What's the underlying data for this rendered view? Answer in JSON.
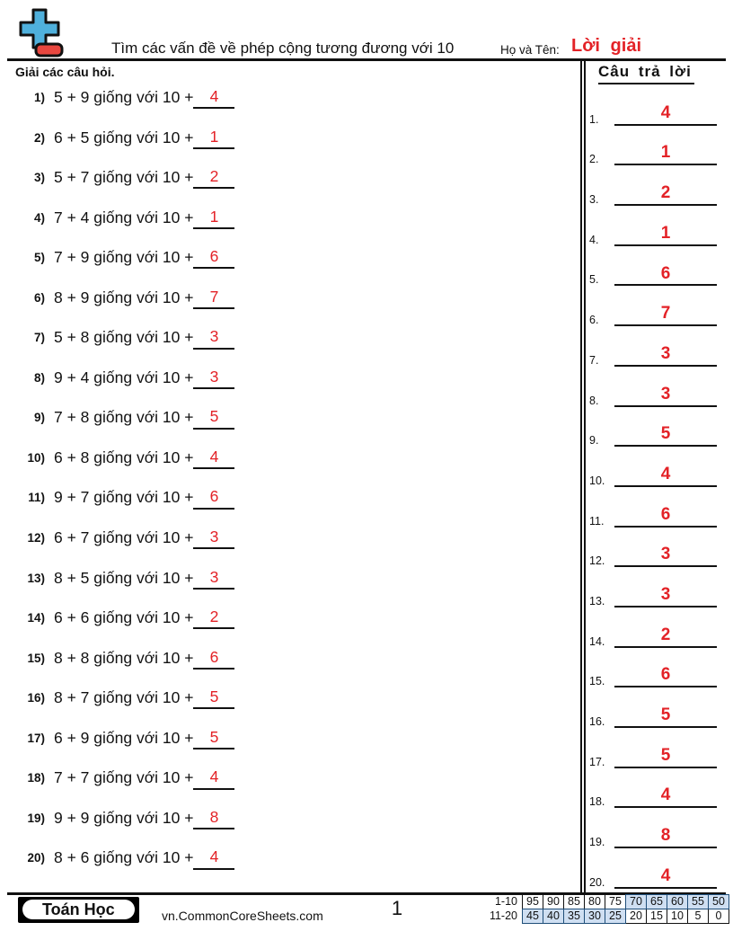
{
  "header": {
    "title": "Tìm các vấn đề về phép cộng tương đương với 10",
    "name_label": "Họ và Tên:",
    "name_value": "Lời giải",
    "instructions": "Giải các câu hỏi."
  },
  "colors": {
    "answer_red": "#e32227",
    "icon_blue": "#4fb0dc",
    "icon_red": "#e8473f",
    "score_highlight": "#cfdff2",
    "score_highlight_border": "#1f4e79"
  },
  "questions": [
    {
      "num": "1)",
      "text": "5 + 9 giống với 10 +",
      "answer": "4"
    },
    {
      "num": "2)",
      "text": "6 + 5 giống với 10 +",
      "answer": "1"
    },
    {
      "num": "3)",
      "text": "5 + 7 giống với 10 +",
      "answer": "2"
    },
    {
      "num": "4)",
      "text": "7 + 4 giống với 10 +",
      "answer": "1"
    },
    {
      "num": "5)",
      "text": "7 + 9 giống với 10 +",
      "answer": "6"
    },
    {
      "num": "6)",
      "text": "8 + 9 giống với 10 +",
      "answer": "7"
    },
    {
      "num": "7)",
      "text": "5 + 8 giống với 10 +",
      "answer": "3"
    },
    {
      "num": "8)",
      "text": "9 + 4 giống với 10 +",
      "answer": "3"
    },
    {
      "num": "9)",
      "text": "7 + 8 giống với 10 +",
      "answer": "5"
    },
    {
      "num": "10)",
      "text": "6 + 8 giống với 10 +",
      "answer": "4"
    },
    {
      "num": "11)",
      "text": "9 + 7 giống với 10 +",
      "answer": "6"
    },
    {
      "num": "12)",
      "text": "6 + 7 giống với 10 +",
      "answer": "3"
    },
    {
      "num": "13)",
      "text": "8 + 5 giống với 10 +",
      "answer": "3"
    },
    {
      "num": "14)",
      "text": "6 + 6 giống với 10 +",
      "answer": "2"
    },
    {
      "num": "15)",
      "text": "8 + 8 giống với 10 +",
      "answer": "6"
    },
    {
      "num": "16)",
      "text": "8 + 7 giống với 10 +",
      "answer": "5"
    },
    {
      "num": "17)",
      "text": "6 + 9 giống với 10 +",
      "answer": "5"
    },
    {
      "num": "18)",
      "text": "7 + 7 giống với 10 +",
      "answer": "4"
    },
    {
      "num": "19)",
      "text": "9 + 9 giống với 10 +",
      "answer": "8"
    },
    {
      "num": "20)",
      "text": "8 + 6 giống với 10 +",
      "answer": "4"
    }
  ],
  "answer_panel": {
    "title": "Câu trả lời",
    "items": [
      {
        "num": "1.",
        "value": "4"
      },
      {
        "num": "2.",
        "value": "1"
      },
      {
        "num": "3.",
        "value": "2"
      },
      {
        "num": "4.",
        "value": "1"
      },
      {
        "num": "5.",
        "value": "6"
      },
      {
        "num": "6.",
        "value": "7"
      },
      {
        "num": "7.",
        "value": "3"
      },
      {
        "num": "8.",
        "value": "3"
      },
      {
        "num": "9.",
        "value": "5"
      },
      {
        "num": "10.",
        "value": "4"
      },
      {
        "num": "11.",
        "value": "6"
      },
      {
        "num": "12.",
        "value": "3"
      },
      {
        "num": "13.",
        "value": "3"
      },
      {
        "num": "14.",
        "value": "2"
      },
      {
        "num": "15.",
        "value": "6"
      },
      {
        "num": "16.",
        "value": "5"
      },
      {
        "num": "17.",
        "value": "5"
      },
      {
        "num": "18.",
        "value": "4"
      },
      {
        "num": "19.",
        "value": "8"
      },
      {
        "num": "20.",
        "value": "4"
      }
    ]
  },
  "footer": {
    "brand": "Toán Học",
    "site": "vn.CommonCoreSheets.com",
    "page": "1",
    "score_rows": [
      {
        "label": "1-10",
        "cells": [
          {
            "v": "95",
            "hl": false
          },
          {
            "v": "90",
            "hl": false
          },
          {
            "v": "85",
            "hl": false
          },
          {
            "v": "80",
            "hl": false
          },
          {
            "v": "75",
            "hl": false
          },
          {
            "v": "70",
            "hl": true
          },
          {
            "v": "65",
            "hl": true
          },
          {
            "v": "60",
            "hl": true
          },
          {
            "v": "55",
            "hl": true
          },
          {
            "v": "50",
            "hl": true
          }
        ]
      },
      {
        "label": "11-20",
        "cells": [
          {
            "v": "45",
            "hl": true
          },
          {
            "v": "40",
            "hl": true
          },
          {
            "v": "35",
            "hl": true
          },
          {
            "v": "30",
            "hl": true
          },
          {
            "v": "25",
            "hl": true
          },
          {
            "v": "20",
            "hl": false
          },
          {
            "v": "15",
            "hl": false
          },
          {
            "v": "10",
            "hl": false
          },
          {
            "v": "5",
            "hl": false
          },
          {
            "v": "0",
            "hl": false
          }
        ]
      }
    ]
  }
}
